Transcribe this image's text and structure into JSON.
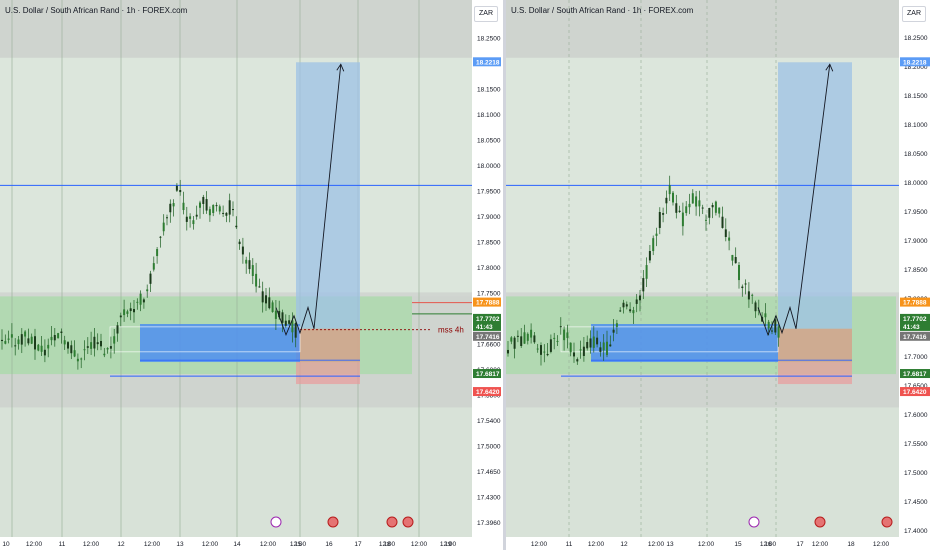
{
  "charts": [
    {
      "title": "U.S. Dollar / South African Rand · 1h · FOREX.com",
      "currency": "ZAR",
      "x_labels": [
        "10",
        "12:00",
        "11",
        "12:00",
        "12",
        "12:00",
        "13",
        "12:00",
        "14",
        "12:00",
        "15",
        "12:00",
        "16",
        "17",
        "12:00",
        "18",
        "12:00",
        "19",
        "12:00"
      ],
      "y_ticks": [
        "18.2500",
        "18.2000",
        "18.1500",
        "18.1000",
        "18.0500",
        "18.0000",
        "17.9500",
        "17.9000",
        "17.8500",
        "17.8000",
        "17.7500",
        "17.7000",
        "17.6600",
        "17.6000",
        "17.5800",
        "17.5400",
        "17.5000",
        "17.4650",
        "17.4300",
        "17.3960"
      ],
      "price_tags": [
        "18.2218",
        "17.7888",
        "17.7702",
        "41:43",
        "17.7416",
        "17.6817",
        "17.6420"
      ],
      "annotation": "mss 4h"
    },
    {
      "title": "U.S. Dollar / South African Rand · 1h · FOREX.com",
      "currency": "ZAR",
      "x_labels": [
        "12:00",
        "11",
        "12:00",
        "12",
        "12:00",
        "13",
        "12:00",
        "15",
        "12:00",
        "16",
        "17",
        "12:00",
        "18",
        "12:00"
      ],
      "y_ticks": [
        "18.2500",
        "18.2000",
        "18.1500",
        "18.1000",
        "18.0500",
        "18.0000",
        "17.9500",
        "17.9000",
        "17.8500",
        "17.8000",
        "17.7500",
        "17.7000",
        "17.6500",
        "17.6000",
        "17.5500",
        "17.5000",
        "17.4500",
        "17.4000"
      ],
      "price_tags": [
        "18.2218",
        "17.7888",
        "17.7702",
        "41:43",
        "17.7416",
        "17.6817",
        "17.6420"
      ],
      "annotation": ""
    }
  ],
  "chart_data": [
    {
      "type": "candlestick",
      "title": "U.S. Dollar / South African Rand · 1h · FOREX.com",
      "ylim": [
        17.37,
        18.28
      ],
      "key_levels": {
        "target": 18.2218,
        "blue_line": 18.0,
        "premium_top": 17.8,
        "premium_bottom": 17.66,
        "entry": 17.7416,
        "stop": 17.642,
        "orange_level": 17.7888,
        "green_level": 17.7702,
        "box_top": 17.7502,
        "box_bottom": 17.6817
      },
      "tag_colors": {
        "target": "#5b9cf6",
        "orange": "#f7931a",
        "green": "#2e7d32",
        "grey": "#757575",
        "red": "#ef5350"
      },
      "grid": true
    },
    {
      "type": "candlestick",
      "title": "U.S. Dollar / South African Rand · 1h · FOREX.com",
      "ylim": [
        17.37,
        18.28
      ],
      "key_levels": {
        "target": 18.2218,
        "blue_line": 18.0,
        "premium_top": 17.8,
        "premium_bottom": 17.66,
        "entry": 17.7416,
        "stop": 17.642,
        "orange_level": 17.7888,
        "green_level": 17.7702,
        "box_top": 17.7502,
        "box_bottom": 17.6817
      },
      "tag_colors": {
        "target": "#5b9cf6",
        "orange": "#f7931a",
        "green": "#2e7d32",
        "grey": "#757575",
        "red": "#ef5350"
      },
      "grid": true
    }
  ]
}
